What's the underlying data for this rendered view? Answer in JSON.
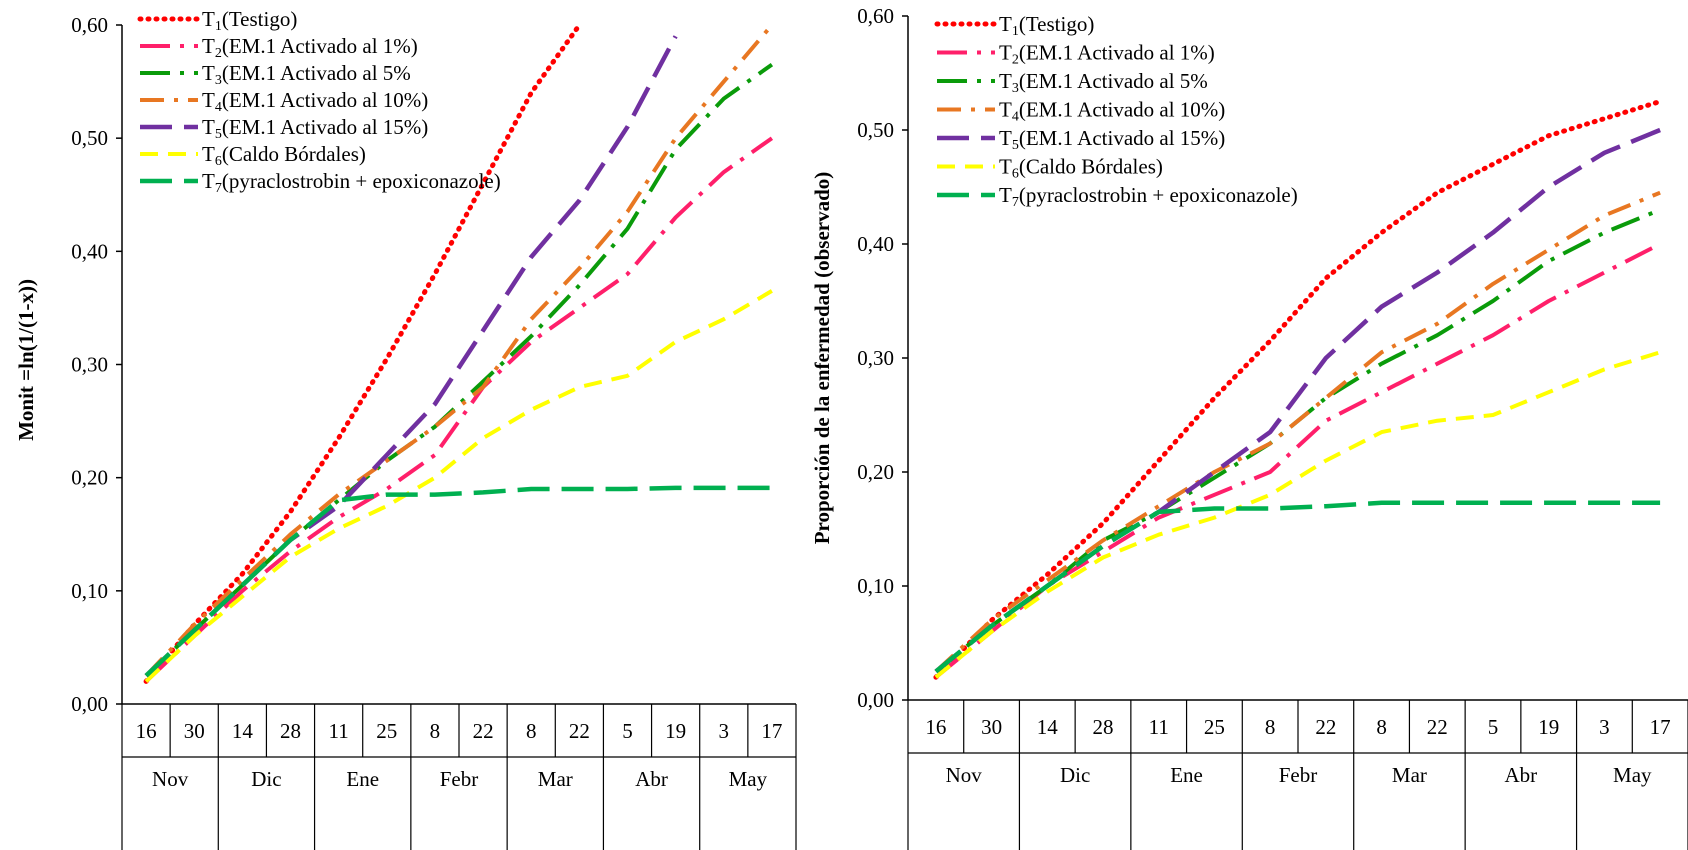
{
  "chart_data": [
    {
      "type": "line",
      "ylabel": "Monit =ln(1/(1-x))",
      "ylim": [
        0,
        0.6
      ],
      "yticks": [
        "0,00",
        "0,10",
        "0,20",
        "0,30",
        "0,40",
        "0,50",
        "0,60"
      ],
      "x_day_labels": [
        "16",
        "30",
        "14",
        "28",
        "11",
        "25",
        "8",
        "22",
        "8",
        "22",
        "5",
        "19",
        "3",
        "17"
      ],
      "x_month_labels": [
        "Nov",
        "Dic",
        "Ene",
        "Febr",
        "Mar",
        "Abr",
        "May"
      ],
      "legend_position": "top-left",
      "series": [
        {
          "name": "(Testigo)",
          "sub": "1",
          "color": "#ff0000",
          "style": "dotted",
          "values": [
            0.02,
            0.07,
            0.115,
            0.17,
            0.235,
            0.305,
            0.38,
            0.46,
            0.54,
            0.6,
            null,
            null,
            null,
            null
          ]
        },
        {
          "name": "(EM.1 Activado al 1%)",
          "sub": "2",
          "color": "#ff1f6a",
          "style": "dashdot",
          "values": [
            0.02,
            0.06,
            0.1,
            0.135,
            0.165,
            0.19,
            0.22,
            0.28,
            0.32,
            0.35,
            0.38,
            0.43,
            0.47,
            0.5
          ]
        },
        {
          "name": "(EM.1 Activado al 5%",
          "sub": "3",
          "color": "#0a9b0a",
          "style": "dashdot",
          "values": [
            0.025,
            0.065,
            0.105,
            0.145,
            0.18,
            0.215,
            0.245,
            0.285,
            0.325,
            0.37,
            0.42,
            0.49,
            0.535,
            0.565
          ]
        },
        {
          "name": "(EM.1 Activado al 10%)",
          "sub": "4",
          "color": "#e87722",
          "style": "dashdotdot",
          "values": [
            0.025,
            0.07,
            0.11,
            0.15,
            0.185,
            0.215,
            0.245,
            0.28,
            0.34,
            0.385,
            0.435,
            0.5,
            0.55,
            0.6
          ]
        },
        {
          "name": "(EM.1 Activado al 15%)",
          "sub": "5",
          "color": "#7030a0",
          "style": "longdash",
          "values": [
            0.025,
            0.065,
            0.105,
            0.145,
            0.175,
            0.22,
            0.265,
            0.33,
            0.395,
            0.445,
            0.51,
            0.59,
            null,
            null
          ]
        },
        {
          "name": "(Caldo Bórdales)",
          "sub": "6",
          "color": "#ffff00",
          "style": "dash",
          "values": [
            0.02,
            0.06,
            0.095,
            0.13,
            0.155,
            0.175,
            0.2,
            0.235,
            0.26,
            0.28,
            0.29,
            0.32,
            0.34,
            0.365
          ]
        },
        {
          "name": "(pyraclostrobin + epoxiconazole)",
          "sub": "7",
          "color": "#00b050",
          "style": "longdash",
          "values": [
            0.025,
            0.065,
            0.105,
            0.145,
            0.18,
            0.185,
            0.185,
            0.187,
            0.19,
            0.19,
            0.19,
            0.191,
            0.191,
            0.191
          ]
        }
      ]
    },
    {
      "type": "line",
      "ylabel": "Proporción  de  la  enfermedad  (observado)",
      "ylim": [
        0,
        0.6
      ],
      "yticks": [
        "0,00",
        "0,10",
        "0,20",
        "0,30",
        "0,40",
        "0,50",
        "0,60"
      ],
      "x_day_labels": [
        "16",
        "30",
        "14",
        "28",
        "11",
        "25",
        "8",
        "22",
        "8",
        "22",
        "5",
        "19",
        "3",
        "17"
      ],
      "x_month_labels": [
        "Nov",
        "Dic",
        "Ene",
        "Febr",
        "Mar",
        "Abr",
        "May"
      ],
      "legend_position": "top-left",
      "series": [
        {
          "name": "(Testigo)",
          "sub": "1",
          "color": "#ff0000",
          "style": "dotted",
          "values": [
            0.02,
            0.07,
            0.11,
            0.155,
            0.21,
            0.265,
            0.315,
            0.37,
            0.41,
            0.445,
            0.47,
            0.495,
            0.51,
            0.525
          ]
        },
        {
          "name": "(EM.1 Activado al 1%)",
          "sub": "2",
          "color": "#ff1f6a",
          "style": "dashdot",
          "values": [
            0.02,
            0.06,
            0.1,
            0.13,
            0.16,
            0.18,
            0.2,
            0.245,
            0.27,
            0.295,
            0.32,
            0.35,
            0.375,
            0.4
          ]
        },
        {
          "name": "(EM.1 Activado al 5%",
          "sub": "3",
          "color": "#0a9b0a",
          "style": "dashdot",
          "values": [
            0.025,
            0.065,
            0.1,
            0.14,
            0.165,
            0.195,
            0.225,
            0.265,
            0.295,
            0.32,
            0.35,
            0.385,
            0.41,
            0.43
          ]
        },
        {
          "name": "(EM.1 Activado al 10%)",
          "sub": "4",
          "color": "#e87722",
          "style": "dashdotdot",
          "values": [
            0.025,
            0.07,
            0.105,
            0.14,
            0.17,
            0.2,
            0.225,
            0.265,
            0.305,
            0.33,
            0.365,
            0.395,
            0.425,
            0.445
          ]
        },
        {
          "name": "(EM.1 Activado al 15%)",
          "sub": "5",
          "color": "#7030a0",
          "style": "longdash",
          "values": [
            0.025,
            0.065,
            0.1,
            0.135,
            0.165,
            0.2,
            0.235,
            0.3,
            0.345,
            0.375,
            0.41,
            0.45,
            0.48,
            0.5
          ]
        },
        {
          "name": "(Caldo Bórdales)",
          "sub": "6",
          "color": "#ffff00",
          "style": "dash",
          "values": [
            0.02,
            0.06,
            0.095,
            0.125,
            0.145,
            0.16,
            0.18,
            0.21,
            0.235,
            0.245,
            0.25,
            0.27,
            0.29,
            0.305
          ]
        },
        {
          "name": "(pyraclostrobin + epoxiconazole)",
          "sub": "7",
          "color": "#00b050",
          "style": "longdash",
          "values": [
            0.025,
            0.065,
            0.1,
            0.135,
            0.165,
            0.168,
            0.168,
            0.17,
            0.173,
            0.173,
            0.173,
            0.173,
            0.173,
            0.173
          ]
        }
      ]
    }
  ]
}
